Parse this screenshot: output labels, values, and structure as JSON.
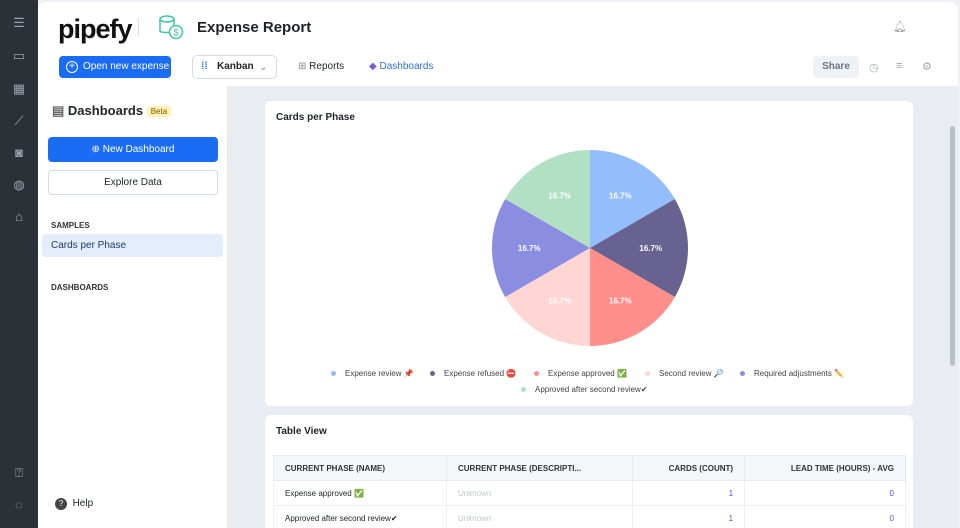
{
  "rail": {
    "icons": [
      "collapse-menu-icon",
      "inbox-icon",
      "table-icon",
      "chart-icon",
      "bot-icon",
      "globe-icon",
      "store-icon",
      "help-box-icon",
      "chat-icon"
    ]
  },
  "header": {
    "logo": "pipefy",
    "title": "Expense Report",
    "open_button": "Open new expense",
    "view_select": "Kanban",
    "nav": [
      "Reports",
      "Dashboards"
    ],
    "share": "Share"
  },
  "sidebar": {
    "title": "Dashboards",
    "badge": "Beta",
    "new_dashboard": "New Dashboard",
    "explore": "Explore Data",
    "samples_heading": "SAMPLES",
    "samples": [
      "Cards per Phase"
    ],
    "dashboards_heading": "DASHBOARDS",
    "help": "Help"
  },
  "chart_data": {
    "type": "pie",
    "title": "Cards per Phase",
    "labels": [
      "Expense review 📌",
      "Expense refused ⛔",
      "Expense approved ✅",
      "Second review 🔎",
      "Required adjustments ✏️",
      "Approved after second review✔"
    ],
    "values": [
      1,
      1,
      1,
      1,
      1,
      1
    ],
    "percent_labels": [
      "16.7%",
      "16.7%",
      "16.7%",
      "16.7%",
      "16.7%",
      "16.7%"
    ],
    "colors": [
      "#93bdfb",
      "#67628f",
      "#ff8f8a",
      "#ffd6d4",
      "#8b8ee0",
      "#b2e0c4"
    ],
    "legend_position": "bottom"
  },
  "table": {
    "title": "Table View",
    "columns": [
      "CURRENT PHASE (NAME)",
      "CURRENT PHASE (DESCRIPTI...",
      "CARDS (COUNT)",
      "LEAD TIME (HOURS) - AVG"
    ],
    "rows": [
      [
        "Expense approved ✅",
        "Unknown",
        "1",
        "0"
      ],
      [
        "Approved after second review✔",
        "Unknown",
        "1",
        "0"
      ]
    ]
  }
}
